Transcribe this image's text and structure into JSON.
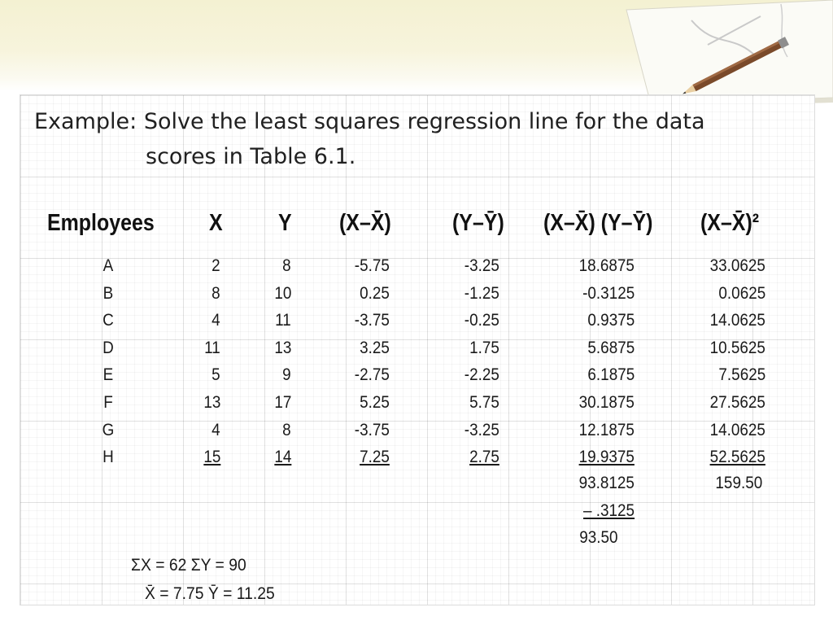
{
  "slide": {
    "title_prefix": "Example:",
    "title_line1": "Solve the least squares regression line for the data",
    "title_line2": "scores in Table 6.1."
  },
  "table": {
    "headers": [
      "Employees",
      "X",
      "Y",
      "(X–X̄)",
      "(Y–Ȳ)",
      "(X–X̄) (Y–Ȳ)",
      "(X–X̄)²"
    ],
    "rows": [
      [
        "A",
        "2",
        "8",
        "-5.75",
        "-3.25",
        "18.6875",
        "33.0625"
      ],
      [
        "B",
        "8",
        "10",
        "0.25",
        "-1.25",
        "-0.3125",
        "0.0625"
      ],
      [
        "C",
        "4",
        "11",
        "-3.75",
        "-0.25",
        "0.9375",
        "14.0625"
      ],
      [
        "D",
        "11",
        "13",
        "3.25",
        "1.75",
        "5.6875",
        "10.5625"
      ],
      [
        "E",
        "5",
        "9",
        "-2.75",
        "-2.25",
        "6.1875",
        "7.5625"
      ],
      [
        "F",
        "13",
        "17",
        "5.25",
        "5.75",
        "30.1875",
        "27.5625"
      ],
      [
        "G",
        "4",
        "8",
        "-3.75",
        "-3.25",
        "12.1875",
        "14.0625"
      ],
      [
        "H",
        "15",
        "14",
        "7.25",
        "2.75",
        "19.9375",
        "52.5625"
      ]
    ],
    "totals": {
      "xy_sum": "93.8125",
      "xx_sum": "159.50",
      "xy_adjust": "– .3125",
      "xy_result": "93.50"
    }
  },
  "summary": {
    "sums": "ΣX = 62  ΣY = 90",
    "means": "X̄ = 7.75 Ȳ = 11.25"
  },
  "colors": {
    "band": "#f4f1d2",
    "grid_line": "#e6e6e6",
    "text": "#1a1a1a"
  }
}
